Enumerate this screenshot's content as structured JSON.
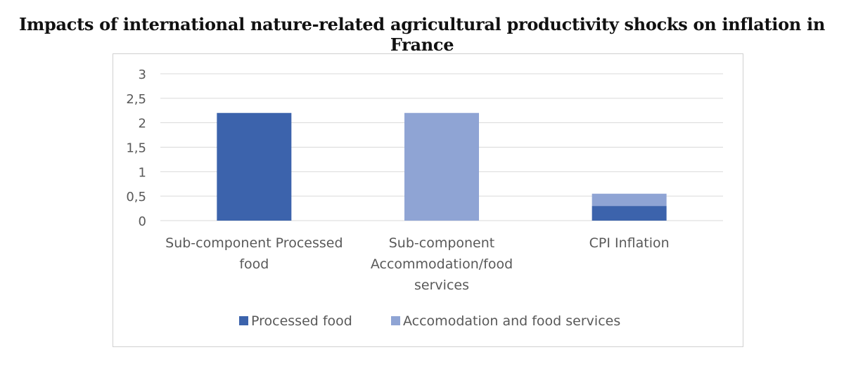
{
  "chart_data": {
    "type": "bar",
    "stacked": true,
    "title": "Impacts of international nature-related agricultural productivity shocks on inflation in France",
    "categories": [
      [
        "Sub-component Processed",
        "food"
      ],
      [
        "Sub-component",
        "Accommodation/food",
        "services"
      ],
      [
        "CPI Inflation"
      ]
    ],
    "series": [
      {
        "name": "Processed food",
        "values": [
          2.2,
          0,
          0.3
        ],
        "color": "#3c63ac"
      },
      {
        "name": "Accomodation and food services",
        "values": [
          0,
          2.2,
          0.25
        ],
        "color": "#8fa4d4"
      }
    ],
    "yticks": [
      "0",
      "0,5",
      "1",
      "1,5",
      "2",
      "2,5",
      "3"
    ],
    "ylim": [
      0,
      3
    ],
    "xlabel": "",
    "ylabel": "",
    "grid": true,
    "legend": "bottom"
  },
  "colors": {
    "gridline": "#d9d9d9",
    "text": "#595959"
  }
}
